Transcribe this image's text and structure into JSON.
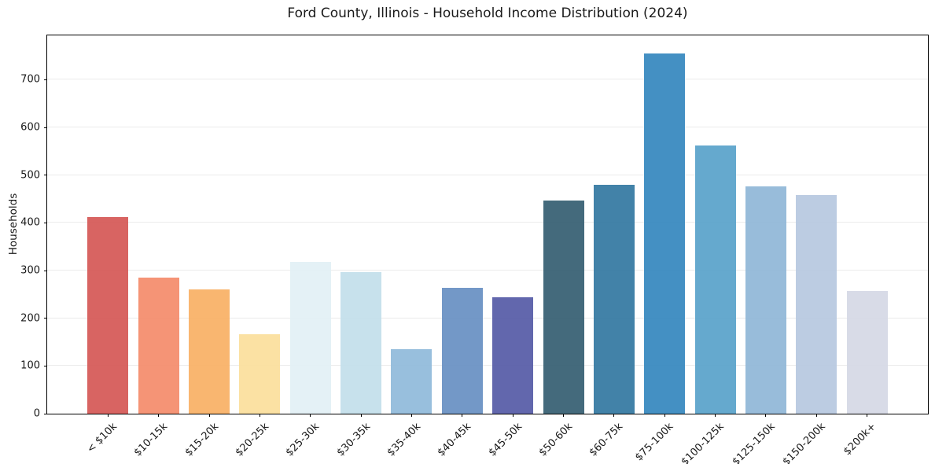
{
  "chart_data": {
    "type": "bar",
    "title": "Ford County, Illinois - Household Income Distribution (2024)",
    "xlabel": "",
    "ylabel": "Households",
    "ylim": [
      0,
      793
    ],
    "yticks": [
      0,
      100,
      200,
      300,
      400,
      500,
      600,
      700
    ],
    "grid": "horizontal",
    "legend": "none",
    "categories": [
      "< $10k",
      "$10-15k",
      "$15-20k",
      "$20-25k",
      "$25-30k",
      "$30-35k",
      "$35-40k",
      "$40-45k",
      "$45-50k",
      "$50-60k",
      "$60-75k",
      "$75-100k",
      "$100-125k",
      "$125-150k",
      "$150-200k",
      "$200k+"
    ],
    "values": [
      413,
      285,
      261,
      167,
      319,
      296,
      136,
      263,
      244,
      446,
      479,
      755,
      562,
      477,
      459,
      257
    ],
    "bar_colors": [
      "#d65c5a",
      "#f48e6f",
      "#f9b268",
      "#fbdf9e",
      "#e3f0f6",
      "#c4dfeb",
      "#92bcdb",
      "#6b92c4",
      "#5a5fa9",
      "#3a6275",
      "#387ba3",
      "#3a8ac0",
      "#5da4cb",
      "#92b8d8",
      "#b8c9e0",
      "#d6d9e6"
    ],
    "grid_color": "#ebebeb",
    "spine_color": "#000000",
    "text_color": "#1a1a1a"
  }
}
